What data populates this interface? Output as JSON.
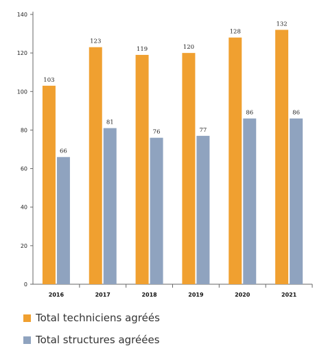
{
  "chart_data": {
    "type": "bar",
    "categories": [
      "2016",
      "2017",
      "2018",
      "2019",
      "2020",
      "2021"
    ],
    "series": [
      {
        "name": "Total techniciens agréés",
        "values": [
          103,
          123,
          119,
          120,
          128,
          132
        ],
        "color": "#F0A030"
      },
      {
        "name": "Total structures agréées",
        "values": [
          66,
          81,
          76,
          77,
          86,
          86
        ],
        "color": "#8FA3BF"
      }
    ],
    "data_labels": [
      [
        "103",
        "123",
        "119",
        "120",
        "128",
        "132"
      ],
      [
        "66",
        "81",
        "76",
        "77",
        "86",
        "86"
      ]
    ],
    "ylim": [
      0,
      140
    ],
    "yticks": [
      "0",
      "20",
      "40",
      "60",
      "80",
      "100",
      "120",
      "140"
    ],
    "grid": false,
    "legend_position": "bottom-left"
  }
}
